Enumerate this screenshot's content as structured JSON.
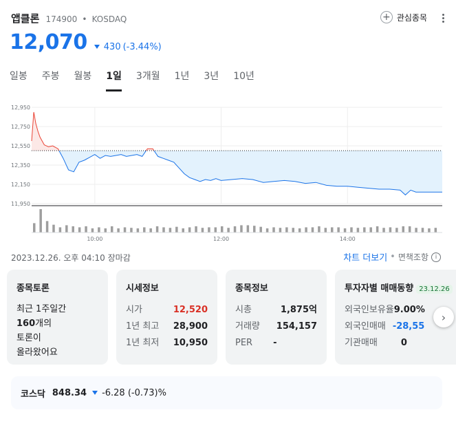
{
  "header": {
    "name": "앱클론",
    "code": "174900",
    "dot": "•",
    "market": "KOSDAQ",
    "watch_label": "관심종목",
    "watch_icon": "plus-icon",
    "menu_icon": "more-vert-icon"
  },
  "quote": {
    "price": "12,070",
    "change": "430",
    "change_pct": "(-3.44%)",
    "direction": "down",
    "color": "#1a73e8"
  },
  "tabs": [
    {
      "label": "일봉",
      "active": false
    },
    {
      "label": "주봉",
      "active": false
    },
    {
      "label": "월봉",
      "active": false
    },
    {
      "label": "1일",
      "active": true
    },
    {
      "label": "3개월",
      "active": false
    },
    {
      "label": "1년",
      "active": false
    },
    {
      "label": "3년",
      "active": false
    },
    {
      "label": "10년",
      "active": false
    }
  ],
  "chart_data": {
    "type": "area",
    "title": "",
    "xlabel": "",
    "ylabel": "",
    "y_ticks": [
      "12,950",
      "12,750",
      "12,550",
      "12,350",
      "12,150",
      "11,950"
    ],
    "ylim": [
      11950,
      12950
    ],
    "x_ticks": [
      "10:00",
      "12:00",
      "14:00"
    ],
    "xlim": [
      "09:00",
      "15:30"
    ],
    "baseline": 12500,
    "up_color": "#ea4335",
    "down_color": "#1a73e8",
    "grid": true,
    "series": [
      {
        "x": [
          "09:00",
          "09:02",
          "09:04",
          "09:06",
          "09:08",
          "09:12",
          "09:16",
          "09:20",
          "09:25",
          "09:30",
          "09:35",
          "09:40",
          "09:45",
          "09:50",
          "09:55",
          "10:00",
          "10:05",
          "10:10",
          "10:15",
          "10:20",
          "10:25",
          "10:30",
          "10:35",
          "10:40",
          "10:45",
          "10:50",
          "10:55",
          "11:00",
          "11:05",
          "11:10",
          "11:15",
          "11:20",
          "11:25",
          "11:30",
          "11:35",
          "11:40",
          "11:45",
          "11:50",
          "11:55",
          "12:00",
          "12:10",
          "12:20",
          "12:30",
          "12:40",
          "12:50",
          "13:00",
          "13:10",
          "13:20",
          "13:30",
          "13:40",
          "13:50",
          "14:00",
          "14:10",
          "14:20",
          "14:30",
          "14:40",
          "14:50",
          "14:55",
          "15:00",
          "15:05",
          "15:10",
          "15:20",
          "15:30"
        ],
        "y": [
          12600,
          12900,
          12780,
          12700,
          12640,
          12560,
          12540,
          12550,
          12520,
          12420,
          12300,
          12280,
          12380,
          12400,
          12430,
          12460,
          12420,
          12450,
          12440,
          12450,
          12460,
          12440,
          12450,
          12460,
          12440,
          12520,
          12520,
          12440,
          12420,
          12400,
          12380,
          12320,
          12260,
          12220,
          12200,
          12180,
          12200,
          12190,
          12210,
          12190,
          12200,
          12210,
          12200,
          12170,
          12180,
          12190,
          12180,
          12160,
          12170,
          12140,
          12130,
          12130,
          12120,
          12110,
          12100,
          12100,
          12090,
          12040,
          12090,
          12070,
          12070,
          12070,
          12070
        ]
      }
    ],
    "volume": [
      18,
      45,
      22,
      15,
      10,
      14,
      12,
      10,
      12,
      8,
      10,
      8,
      12,
      8,
      10,
      9,
      8,
      10,
      8,
      12,
      10,
      9,
      11,
      8,
      10,
      12,
      9,
      10,
      10,
      12,
      9,
      12,
      14,
      14,
      13,
      11,
      8,
      10,
      9,
      10,
      9,
      8,
      10,
      10,
      12,
      9,
      10,
      10,
      8,
      10,
      9,
      10,
      10,
      12,
      9,
      10,
      9,
      12,
      12,
      9,
      9,
      8,
      9
    ]
  },
  "status": {
    "timestamp": "2023.12.26. 오후 04:10 장마감",
    "chart_more": "차트 더보기",
    "sep": "•",
    "disclaimer": "면책조항",
    "info_icon": "i"
  },
  "cards": {
    "discussion": {
      "title": "종목토론",
      "line1": "최근 1주일간",
      "line2_bold": "160",
      "line2_rest": "개의",
      "line3": "토론이",
      "line4": "올라왔어요"
    },
    "quote_info": {
      "title": "시세정보",
      "rows": [
        {
          "k": "시가",
          "v": "12,520",
          "tone": "red"
        },
        {
          "k": "1년 최고",
          "v": "28,900",
          "tone": ""
        },
        {
          "k": "1년 최저",
          "v": "10,950",
          "tone": ""
        }
      ]
    },
    "stock_info": {
      "title": "종목정보",
      "rows": [
        {
          "k": "시총",
          "v": "1,875억",
          "tone": ""
        },
        {
          "k": "거래량",
          "v": "154,157",
          "tone": ""
        },
        {
          "k": "PER",
          "v": "-",
          "tone": ""
        }
      ]
    },
    "investor": {
      "title": "투자자별 매매동향",
      "date": "23.12.26",
      "rows": [
        {
          "k": "외국인보유율",
          "v": "9.00%",
          "tone": ""
        },
        {
          "k": "외국인매매",
          "v": "-28,55",
          "tone": "blue"
        },
        {
          "k": "기관매매",
          "v": "0",
          "tone": ""
        }
      ]
    }
  },
  "next_icon": "chevron-right-icon",
  "next_glyph": "›",
  "index": {
    "name": "코스닥",
    "value": "848.34",
    "change": "-6.28 (-0.73)%"
  }
}
